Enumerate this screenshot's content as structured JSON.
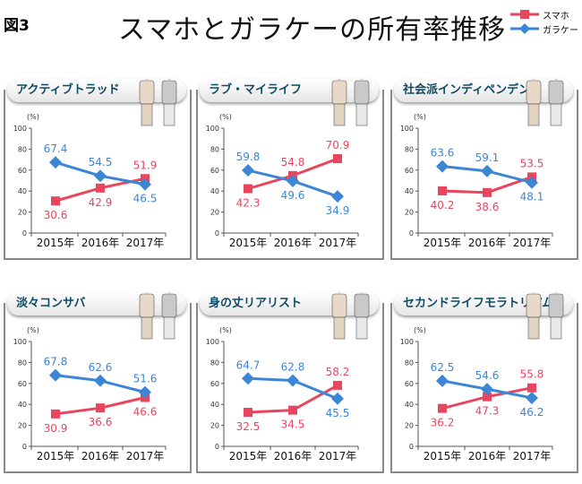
{
  "figure_label": "図3",
  "title": "スマホとガラケーの所有率推移",
  "legend": [
    {
      "name": "スマホ",
      "color": "#e8455e",
      "marker": "square"
    },
    {
      "name": "ガラケー",
      "color": "#3d86d6",
      "marker": "diamond"
    }
  ],
  "chart_data": [
    {
      "type": "line",
      "title": "アクティブトラッド",
      "categories": [
        "2015年",
        "2016年",
        "2017年"
      ],
      "ylabel": "(%)",
      "ylim": [
        0,
        100
      ],
      "yticks": [
        0,
        20,
        40,
        60,
        80,
        100
      ],
      "series": [
        {
          "name": "スマホ",
          "values": [
            30.6,
            42.9,
            51.9
          ]
        },
        {
          "name": "ガラケー",
          "values": [
            67.4,
            54.5,
            46.5
          ]
        }
      ]
    },
    {
      "type": "line",
      "title": "ラブ・マイライフ",
      "categories": [
        "2015年",
        "2016年",
        "2017年"
      ],
      "ylabel": "(%)",
      "ylim": [
        0,
        100
      ],
      "yticks": [
        0,
        20,
        40,
        60,
        80,
        100
      ],
      "series": [
        {
          "name": "スマホ",
          "values": [
            42.3,
            54.8,
            70.9
          ]
        },
        {
          "name": "ガラケー",
          "values": [
            59.8,
            49.6,
            34.9
          ]
        }
      ]
    },
    {
      "type": "line",
      "title": "社会派インディペンデント",
      "categories": [
        "2015年",
        "2016年",
        "2017年"
      ],
      "ylabel": "(%)",
      "ylim": [
        0,
        100
      ],
      "yticks": [
        0,
        20,
        40,
        60,
        80,
        100
      ],
      "series": [
        {
          "name": "スマホ",
          "values": [
            40.2,
            38.6,
            53.5
          ]
        },
        {
          "name": "ガラケー",
          "values": [
            63.6,
            59.1,
            48.1
          ]
        }
      ]
    },
    {
      "type": "line",
      "title": "淡々コンサバ",
      "categories": [
        "2015年",
        "2016年",
        "2017年"
      ],
      "ylabel": "(%)",
      "ylim": [
        0,
        100
      ],
      "yticks": [
        0,
        20,
        40,
        60,
        80,
        100
      ],
      "series": [
        {
          "name": "スマホ",
          "values": [
            30.9,
            36.6,
            46.6
          ]
        },
        {
          "name": "ガラケー",
          "values": [
            67.8,
            62.6,
            51.6
          ]
        }
      ]
    },
    {
      "type": "line",
      "title": "身の丈リアリスト",
      "categories": [
        "2015年",
        "2016年",
        "2017年"
      ],
      "ylabel": "(%)",
      "ylim": [
        0,
        100
      ],
      "yticks": [
        0,
        20,
        40,
        60,
        80,
        100
      ],
      "series": [
        {
          "name": "スマホ",
          "values": [
            32.5,
            34.5,
            58.2
          ]
        },
        {
          "name": "ガラケー",
          "values": [
            64.7,
            62.8,
            45.5
          ]
        }
      ]
    },
    {
      "type": "line",
      "title": "セカンドライフモラトリアム",
      "categories": [
        "2015年",
        "2016年",
        "2017年"
      ],
      "ylabel": "(%)",
      "ylim": [
        0,
        100
      ],
      "yticks": [
        0,
        20,
        40,
        60,
        80,
        100
      ],
      "series": [
        {
          "name": "スマホ",
          "values": [
            36.2,
            47.3,
            55.8
          ]
        },
        {
          "name": "ガラケー",
          "values": [
            62.5,
            54.6,
            46.2
          ]
        }
      ]
    }
  ]
}
